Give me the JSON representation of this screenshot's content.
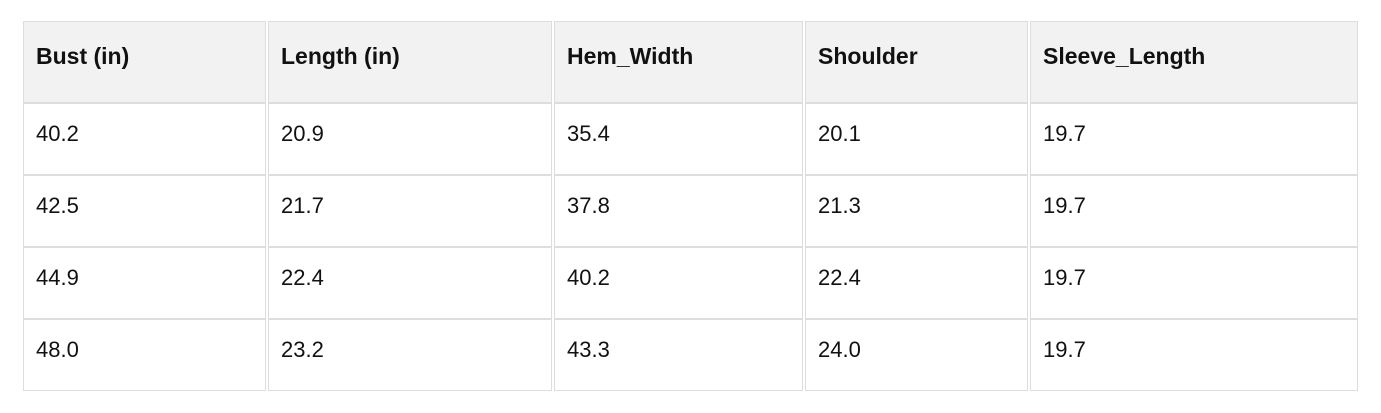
{
  "table": {
    "columns": [
      "Bust (in)",
      "Length (in)",
      "Hem_Width",
      "Shoulder",
      "Sleeve_Length"
    ],
    "rows": [
      [
        "40.2",
        "20.9",
        "35.4",
        "20.1",
        "19.7"
      ],
      [
        "42.5",
        "21.7",
        "37.8",
        "21.3",
        "19.7"
      ],
      [
        "44.9",
        "22.4",
        "40.2",
        "22.4",
        "19.7"
      ],
      [
        "48.0",
        "23.2",
        "43.3",
        "24.0",
        "19.7"
      ]
    ]
  },
  "chart_data": {
    "type": "table",
    "title": "",
    "columns": [
      "Bust (in)",
      "Length (in)",
      "Hem_Width",
      "Shoulder",
      "Sleeve_Length"
    ],
    "rows": [
      [
        40.2,
        20.9,
        35.4,
        20.1,
        19.7
      ],
      [
        42.5,
        21.7,
        37.8,
        21.3,
        19.7
      ],
      [
        44.9,
        22.4,
        40.2,
        22.4,
        19.7
      ],
      [
        48.0,
        23.2,
        43.3,
        24.0,
        19.7
      ]
    ]
  },
  "colors": {
    "header_bg": "#f2f2f2",
    "border": "#dddddd",
    "text": "#111111",
    "page_bg": "#ffffff"
  }
}
